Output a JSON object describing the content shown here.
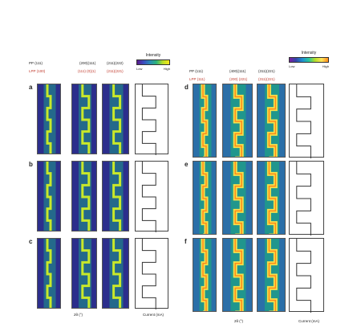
{
  "left_group": {
    "headers": [
      {
        "top": "PP",
        "top_index": "(111)",
        "bottom": "LPP",
        "bottom_index": "(100)"
      },
      {
        "top": "PP",
        "top_index": "(200)(111)",
        "bottom": "",
        "bottom_index": "(111) (0)(1)"
      },
      {
        "top": "PP",
        "top_index": "(211)(222)",
        "bottom": "",
        "bottom_index": "(211)(221)"
      }
    ],
    "panels": [
      "a",
      "b",
      "c"
    ],
    "x_label": "2θ (°)",
    "current_label": "Current (mA)",
    "time_label": "Time (min)"
  },
  "right_group": {
    "headers": [
      {
        "top": "PP",
        "top_index": "(111)",
        "bottom": "LPP",
        "bottom_index": "(111)"
      },
      {
        "top": "",
        "top_index": "(400)(111)",
        "bottom": "",
        "bottom_index": "(200) (221)"
      },
      {
        "top": "",
        "top_index": "(311)(221)",
        "bottom": "",
        "bottom_index": "(311)(221)"
      }
    ],
    "panels": [
      "d",
      "e",
      "f"
    ],
    "x_label": "2θ (°)",
    "current_label": "Current (mA)",
    "time_label": "Time (min)"
  },
  "colorbar_left": {
    "title": "Intensity",
    "low": "Low",
    "high": "High"
  },
  "colorbar_right": {
    "title": "Intensity",
    "low": "Low",
    "high": "High"
  },
  "colors": {
    "heat_bg": "#2c2e8c",
    "heat_mid": "#1f9a8a",
    "heat_line": "#c8e82a",
    "heat_warm": "#f6e04a",
    "heat_hot": "#ff8a1a"
  }
}
